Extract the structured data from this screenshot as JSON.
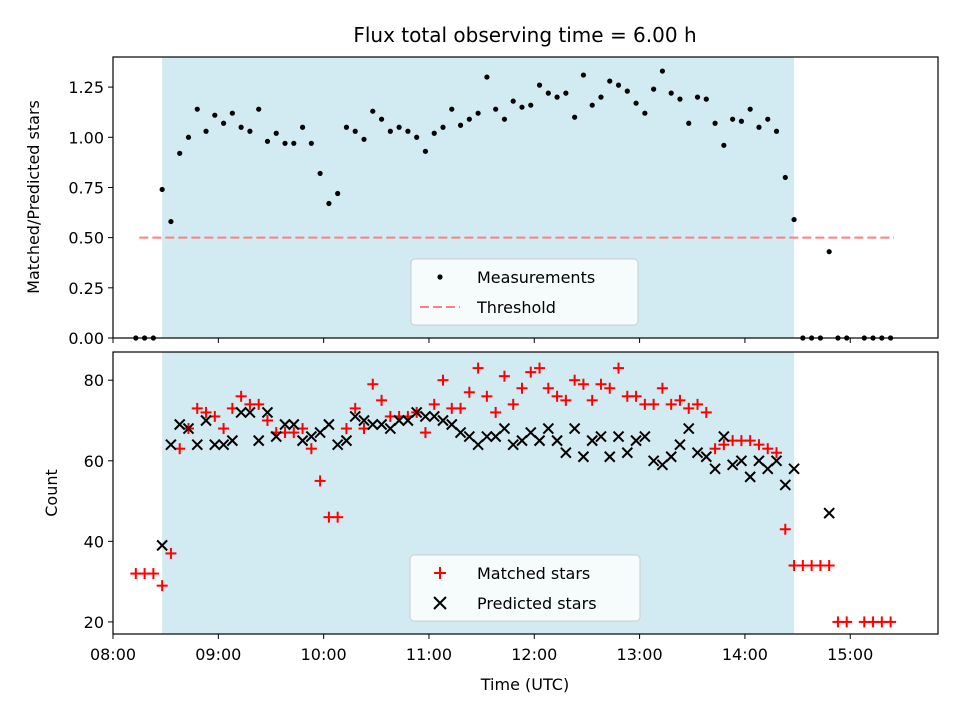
{
  "colors": {
    "observing_band": "#add8e6",
    "measurements": "#000000",
    "threshold": "#ff7f7f",
    "matched_stars": "#ff0000",
    "predicted_stars": "#000000"
  },
  "chart_data": [
    {
      "type": "scatter",
      "title": "Flux total observing time = 6.00 h",
      "xlabel": "",
      "ylabel": "Matched/Predicted stars",
      "x_axis": "time (UTC)",
      "ylim": [
        0,
        1.4
      ],
      "xlim": [
        "08:00",
        "15:50"
      ],
      "yticks": [
        0.0,
        0.25,
        0.5,
        0.75,
        1.0,
        1.25
      ],
      "ytick_labels": [
        "0.00",
        "0.25",
        "0.50",
        "0.75",
        "1.00",
        "1.25"
      ],
      "shaded_span": [
        "08:28",
        "14:28"
      ],
      "threshold": {
        "name": "Threshold",
        "value": 0.5,
        "x_range": [
          "08:15",
          "15:25"
        ]
      },
      "legend": {
        "placement": "lower-center",
        "entries": [
          "Measurements",
          "Threshold"
        ]
      },
      "series": [
        {
          "name": "Measurements",
          "x": [
            "08:13",
            "08:18",
            "08:23",
            "08:28",
            "08:33",
            "08:38",
            "08:43",
            "08:48",
            "08:53",
            "08:58",
            "09:03",
            "09:08",
            "09:13",
            "09:18",
            "09:23",
            "09:28",
            "09:33",
            "09:38",
            "09:43",
            "09:48",
            "09:53",
            "09:58",
            "10:03",
            "10:08",
            "10:13",
            "10:18",
            "10:23",
            "10:28",
            "10:33",
            "10:38",
            "10:43",
            "10:48",
            "10:53",
            "10:58",
            "11:03",
            "11:08",
            "11:13",
            "11:18",
            "11:23",
            "11:28",
            "11:33",
            "11:38",
            "11:43",
            "11:48",
            "11:53",
            "11:58",
            "12:03",
            "12:08",
            "12:13",
            "12:18",
            "12:23",
            "12:28",
            "12:33",
            "12:38",
            "12:43",
            "12:48",
            "12:53",
            "12:58",
            "13:03",
            "13:08",
            "13:13",
            "13:18",
            "13:23",
            "13:28",
            "13:33",
            "13:38",
            "13:43",
            "13:48",
            "13:53",
            "13:58",
            "14:03",
            "14:08",
            "14:13",
            "14:18",
            "14:23",
            "14:28",
            "14:33",
            "14:38",
            "14:43",
            "14:48",
            "14:53",
            "14:58",
            "15:08",
            "15:13",
            "15:18",
            "15:23"
          ],
          "y": [
            0,
            0,
            0,
            0.74,
            0.58,
            0.92,
            1.0,
            1.14,
            1.03,
            1.11,
            1.07,
            1.12,
            1.05,
            1.03,
            1.14,
            0.98,
            1.02,
            0.97,
            0.97,
            1.05,
            0.97,
            0.82,
            0.67,
            0.72,
            1.05,
            1.03,
            0.99,
            1.13,
            1.09,
            1.03,
            1.05,
            1.03,
            1.0,
            0.93,
            1.02,
            1.05,
            1.14,
            1.06,
            1.09,
            1.12,
            1.3,
            1.14,
            1.09,
            1.18,
            1.15,
            1.16,
            1.26,
            1.22,
            1.2,
            1.22,
            1.1,
            1.31,
            1.16,
            1.2,
            1.28,
            1.26,
            1.23,
            1.17,
            1.12,
            1.24,
            1.33,
            1.22,
            1.19,
            1.07,
            1.2,
            1.19,
            1.07,
            0.96,
            1.09,
            1.08,
            1.14,
            1.05,
            1.09,
            1.03,
            0.8,
            0.59,
            0,
            0,
            0,
            0.43,
            0,
            0,
            0,
            0,
            0,
            0
          ]
        }
      ]
    },
    {
      "type": "scatter",
      "xlabel": "Time (UTC)",
      "ylabel": "Count",
      "ylim": [
        17,
        87
      ],
      "xlim": [
        "08:00",
        "15:50"
      ],
      "xticks": [
        "08:00",
        "09:00",
        "10:00",
        "11:00",
        "12:00",
        "13:00",
        "14:00",
        "15:00"
      ],
      "yticks": [
        20,
        40,
        60,
        80
      ],
      "shaded_span": [
        "08:28",
        "14:28"
      ],
      "legend": {
        "placement": "lower-center",
        "entries": [
          "Matched stars",
          "Predicted stars"
        ]
      },
      "series": [
        {
          "name": "Matched stars",
          "x": [
            "08:13",
            "08:18",
            "08:23",
            "08:28",
            "08:33",
            "08:38",
            "08:43",
            "08:48",
            "08:53",
            "08:58",
            "09:03",
            "09:08",
            "09:13",
            "09:18",
            "09:23",
            "09:28",
            "09:33",
            "09:38",
            "09:43",
            "09:48",
            "09:53",
            "09:58",
            "10:03",
            "10:08",
            "10:13",
            "10:18",
            "10:23",
            "10:28",
            "10:33",
            "10:38",
            "10:43",
            "10:48",
            "10:53",
            "10:58",
            "11:03",
            "11:08",
            "11:13",
            "11:18",
            "11:23",
            "11:28",
            "11:33",
            "11:38",
            "11:43",
            "11:48",
            "11:53",
            "11:58",
            "12:03",
            "12:08",
            "12:13",
            "12:18",
            "12:23",
            "12:28",
            "12:33",
            "12:38",
            "12:43",
            "12:48",
            "12:53",
            "12:58",
            "13:03",
            "13:08",
            "13:13",
            "13:18",
            "13:23",
            "13:28",
            "13:33",
            "13:38",
            "13:43",
            "13:48",
            "13:53",
            "13:58",
            "14:03",
            "14:08",
            "14:13",
            "14:18",
            "14:23",
            "14:28",
            "14:33",
            "14:38",
            "14:43",
            "14:48",
            "14:53",
            "14:58",
            "15:08",
            "15:13",
            "15:18",
            "15:23"
          ],
          "y": [
            32,
            32,
            32,
            29,
            37,
            63,
            68,
            73,
            72,
            71,
            68,
            73,
            76,
            74,
            74,
            70,
            67,
            67,
            67,
            68,
            63,
            55,
            46,
            46,
            68,
            73,
            68,
            79,
            75,
            71,
            71,
            71,
            72,
            67,
            74,
            80,
            73,
            73,
            77,
            83,
            76,
            72,
            81,
            74,
            78,
            82,
            83,
            78,
            76,
            75,
            80,
            79,
            75,
            79,
            78,
            83,
            76,
            76,
            74,
            74,
            78,
            74,
            75,
            73,
            74,
            72,
            63,
            64,
            65,
            65,
            65,
            64,
            63,
            62,
            43,
            34,
            34,
            34,
            34,
            34,
            20,
            20,
            20,
            20,
            20,
            20
          ]
        },
        {
          "name": "Predicted stars",
          "x": [
            "08:28",
            "08:33",
            "08:38",
            "08:43",
            "08:48",
            "08:53",
            "08:58",
            "09:03",
            "09:08",
            "09:13",
            "09:18",
            "09:23",
            "09:28",
            "09:33",
            "09:38",
            "09:43",
            "09:48",
            "09:53",
            "09:58",
            "10:03",
            "10:08",
            "10:13",
            "10:18",
            "10:23",
            "10:28",
            "10:33",
            "10:38",
            "10:43",
            "10:48",
            "10:53",
            "10:58",
            "11:03",
            "11:08",
            "11:13",
            "11:18",
            "11:23",
            "11:28",
            "11:33",
            "11:38",
            "11:43",
            "11:48",
            "11:53",
            "11:58",
            "12:03",
            "12:08",
            "12:13",
            "12:18",
            "12:23",
            "12:28",
            "12:33",
            "12:38",
            "12:43",
            "12:48",
            "12:53",
            "12:58",
            "13:03",
            "13:08",
            "13:13",
            "13:18",
            "13:23",
            "13:28",
            "13:33",
            "13:38",
            "13:43",
            "13:48",
            "13:53",
            "13:58",
            "14:03",
            "14:08",
            "14:13",
            "14:18",
            "14:23",
            "14:28",
            "14:48"
          ],
          "y": [
            39,
            64,
            69,
            68,
            64,
            70,
            64,
            64,
            65,
            72,
            72,
            65,
            72,
            66,
            69,
            69,
            65,
            66,
            67,
            69,
            64,
            65,
            71,
            70,
            69,
            69,
            68,
            70,
            70,
            72,
            71,
            71,
            70,
            69,
            67,
            66,
            64,
            66,
            66,
            68,
            64,
            65,
            67,
            65,
            68,
            65,
            62,
            68,
            61,
            65,
            66,
            61,
            66,
            62,
            65,
            66,
            60,
            59,
            61,
            64,
            68,
            62,
            61,
            58,
            66,
            59,
            60,
            56,
            60,
            58,
            60,
            54,
            58,
            47
          ]
        }
      ]
    }
  ]
}
